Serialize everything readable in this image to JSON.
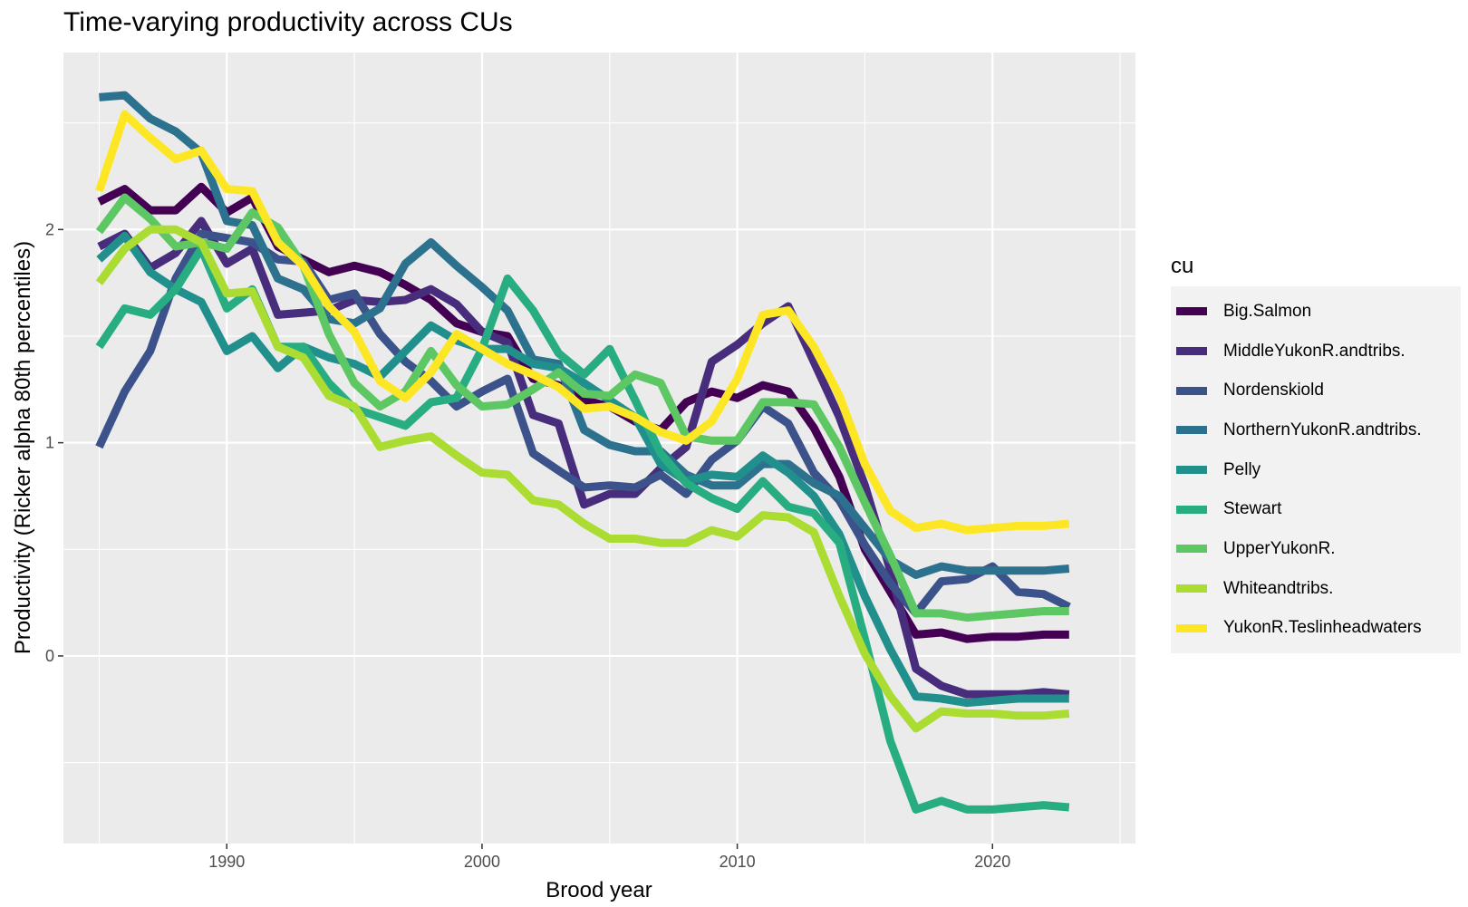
{
  "chart_data": {
    "type": "line",
    "title": "Time-varying productivity across CUs",
    "xlabel": "Brood year",
    "ylabel": "Productivity (Ricker alpha 80th percentiles)",
    "xlim": [
      1983.6,
      2025.6
    ],
    "ylim": [
      -0.88,
      2.83
    ],
    "x_ticks": [
      1990,
      2000,
      2010,
      2020
    ],
    "y_ticks": [
      0,
      1,
      2
    ],
    "grid": true,
    "legend_title": "cu",
    "legend_position": "right",
    "x": [
      1985,
      1986,
      1987,
      1988,
      1989,
      1990,
      1991,
      1992,
      1993,
      1994,
      1995,
      1996,
      1997,
      1998,
      1999,
      2000,
      2001,
      2002,
      2003,
      2004,
      2005,
      2006,
      2007,
      2008,
      2009,
      2010,
      2011,
      2012,
      2013,
      2014,
      2015,
      2016,
      2017,
      2018,
      2019,
      2020,
      2021,
      2022,
      2023
    ],
    "series": [
      {
        "name": "Big.Salmon",
        "color": "#440154",
        "values": [
          2.13,
          2.19,
          2.09,
          2.09,
          2.2,
          2.08,
          2.15,
          1.92,
          1.86,
          1.8,
          1.83,
          1.8,
          1.74,
          1.67,
          1.56,
          1.52,
          1.5,
          1.3,
          1.27,
          1.2,
          1.17,
          1.1,
          1.06,
          1.19,
          1.24,
          1.21,
          1.27,
          1.24,
          1.07,
          0.84,
          0.5,
          0.3,
          0.1,
          0.11,
          0.08,
          0.09,
          0.09,
          0.1,
          0.1
        ]
      },
      {
        "name": "MiddleYukonR.andtribs.",
        "color": "#472D7B",
        "values": [
          1.92,
          1.98,
          1.82,
          1.89,
          2.04,
          1.84,
          1.91,
          1.6,
          1.61,
          1.62,
          1.67,
          1.66,
          1.67,
          1.72,
          1.65,
          1.52,
          1.47,
          1.13,
          1.09,
          0.71,
          0.76,
          0.76,
          0.88,
          0.98,
          1.38,
          1.46,
          1.56,
          1.64,
          1.38,
          1.12,
          0.8,
          0.4,
          -0.06,
          -0.14,
          -0.18,
          -0.18,
          -0.18,
          -0.17,
          -0.18
        ]
      },
      {
        "name": "Nordenskiold",
        "color": "#3B528B",
        "values": [
          0.98,
          1.24,
          1.43,
          1.77,
          1.98,
          1.96,
          1.94,
          1.86,
          1.85,
          1.67,
          1.7,
          1.51,
          1.38,
          1.29,
          1.17,
          1.24,
          1.3,
          0.95,
          0.87,
          0.79,
          0.8,
          0.79,
          0.85,
          0.76,
          0.92,
          1.01,
          1.17,
          1.09,
          0.86,
          0.73,
          0.52,
          0.34,
          0.2,
          0.35,
          0.36,
          0.42,
          0.3,
          0.29,
          0.23
        ]
      },
      {
        "name": "NorthernYukonR.andtribs.",
        "color": "#2C728E",
        "values": [
          2.62,
          2.63,
          2.52,
          2.46,
          2.36,
          2.04,
          2.02,
          1.77,
          1.72,
          1.58,
          1.56,
          1.63,
          1.84,
          1.94,
          1.83,
          1.73,
          1.62,
          1.39,
          1.37,
          1.06,
          0.99,
          0.96,
          0.96,
          0.85,
          0.8,
          0.8,
          0.9,
          0.9,
          0.81,
          0.75,
          0.6,
          0.45,
          0.38,
          0.42,
          0.4,
          0.4,
          0.4,
          0.4,
          0.41
        ]
      },
      {
        "name": "Pelly",
        "color": "#21908C",
        "values": [
          1.86,
          1.97,
          1.8,
          1.72,
          1.66,
          1.43,
          1.5,
          1.35,
          1.45,
          1.4,
          1.37,
          1.31,
          1.43,
          1.55,
          1.48,
          1.44,
          1.44,
          1.37,
          1.35,
          1.28,
          1.2,
          1.12,
          0.9,
          0.82,
          0.85,
          0.84,
          0.94,
          0.86,
          0.75,
          0.57,
          0.28,
          0.03,
          -0.19,
          -0.2,
          -0.22,
          -0.21,
          -0.2,
          -0.2,
          -0.2
        ]
      },
      {
        "name": "Stewart",
        "color": "#27AD81",
        "values": [
          1.45,
          1.63,
          1.6,
          1.72,
          1.91,
          1.63,
          1.72,
          1.45,
          1.45,
          1.28,
          1.16,
          1.12,
          1.08,
          1.19,
          1.21,
          1.44,
          1.77,
          1.62,
          1.42,
          1.32,
          1.44,
          1.2,
          0.95,
          0.81,
          0.74,
          0.69,
          0.82,
          0.7,
          0.67,
          0.53,
          0.08,
          -0.4,
          -0.72,
          -0.68,
          -0.72,
          -0.72,
          -0.71,
          -0.7,
          -0.71
        ]
      },
      {
        "name": "UpperYukonR.",
        "color": "#5DC863",
        "values": [
          1.99,
          2.15,
          2.05,
          1.92,
          1.94,
          1.91,
          2.08,
          2.01,
          1.83,
          1.51,
          1.28,
          1.17,
          1.24,
          1.43,
          1.27,
          1.17,
          1.18,
          1.25,
          1.33,
          1.23,
          1.22,
          1.32,
          1.28,
          1.03,
          1.01,
          1.01,
          1.19,
          1.19,
          1.18,
          0.98,
          0.72,
          0.47,
          0.2,
          0.2,
          0.18,
          0.19,
          0.2,
          0.21,
          0.21
        ]
      },
      {
        "name": "Whiteandtribs.",
        "color": "#AADC32",
        "values": [
          1.75,
          1.91,
          2.0,
          2.0,
          1.94,
          1.7,
          1.71,
          1.45,
          1.4,
          1.22,
          1.17,
          0.98,
          1.01,
          1.03,
          0.94,
          0.86,
          0.85,
          0.73,
          0.71,
          0.62,
          0.55,
          0.55,
          0.53,
          0.53,
          0.59,
          0.56,
          0.66,
          0.65,
          0.58,
          0.28,
          0.01,
          -0.19,
          -0.34,
          -0.26,
          -0.27,
          -0.27,
          -0.28,
          -0.28,
          -0.27
        ]
      },
      {
        "name": "YukonR.Teslinheadwaters",
        "color": "#FDE725",
        "values": [
          2.18,
          2.54,
          2.43,
          2.33,
          2.37,
          2.19,
          2.18,
          1.94,
          1.83,
          1.64,
          1.52,
          1.29,
          1.21,
          1.33,
          1.51,
          1.44,
          1.37,
          1.32,
          1.26,
          1.16,
          1.17,
          1.12,
          1.05,
          1.01,
          1.1,
          1.3,
          1.6,
          1.62,
          1.45,
          1.22,
          0.9,
          0.68,
          0.6,
          0.62,
          0.59,
          0.6,
          0.61,
          0.61,
          0.62
        ]
      }
    ]
  }
}
